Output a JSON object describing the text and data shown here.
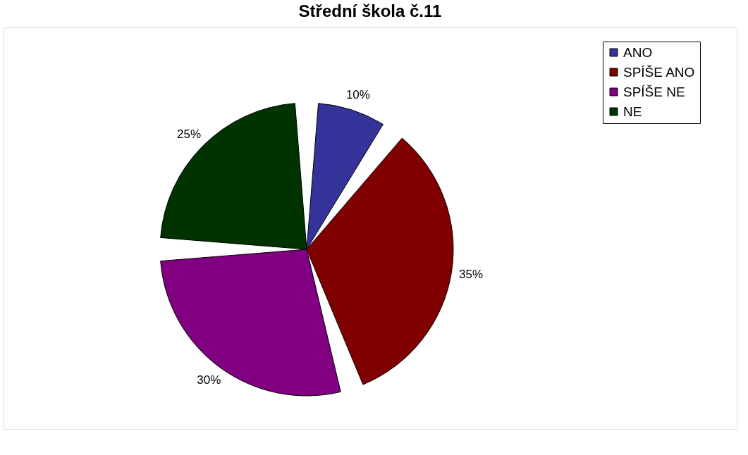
{
  "chart_data": {
    "type": "pie",
    "title": "Střední škola č.11",
    "categories": [
      "ANO",
      "SPÍŠE ANO",
      "SPÍŠE NE",
      "NE"
    ],
    "values": [
      10,
      35,
      30,
      25
    ],
    "colors": [
      "#333399",
      "#800000",
      "#800080",
      "#003300"
    ],
    "value_labels": [
      "10%",
      "35%",
      "30%",
      "25%"
    ],
    "legend": "top right"
  }
}
